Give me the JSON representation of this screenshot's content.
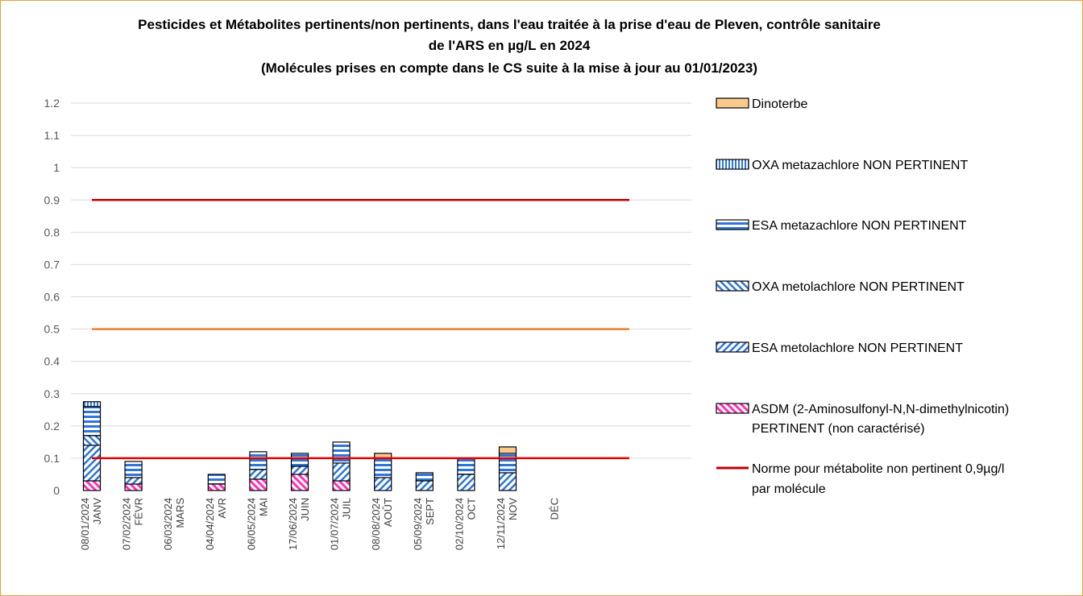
{
  "chart_data": {
    "type": "bar",
    "stacked": true,
    "title_lines": [
      "Pesticides et Métabolites pertinents/non pertinents, dans l'eau traitée à la prise d'eau de Pleven, contrôle sanitaire",
      "de l'ARS en µg/L  en 2024",
      "(Molécules prises en compte dans le CS suite à la mise à jour au 01/01/2023)"
    ],
    "ylim": [
      0,
      1.2
    ],
    "y_ticks": [
      "0",
      "0.1",
      "0.2",
      "0.3",
      "0.4",
      "0.5",
      "0.6",
      "0.7",
      "0.8",
      "0.9",
      "1",
      "1.1",
      "1.2"
    ],
    "grid": true,
    "legend_position": "right",
    "categories": [
      {
        "date": "08/01/2024",
        "month": "JANV"
      },
      {
        "date": "07/02/2024",
        "month": "FÉVR"
      },
      {
        "date": "06/03/2024",
        "month": "MARS"
      },
      {
        "date": "04/04/2024",
        "month": "AVR"
      },
      {
        "date": "06/05/2024",
        "month": "MAI"
      },
      {
        "date": "17/06/2024",
        "month": "JUIN"
      },
      {
        "date": "01/07/2024",
        "month": "JUIL"
      },
      {
        "date": "08/08/2024",
        "month": "AOÛT"
      },
      {
        "date": "05/09/2024",
        "month": "SEPT"
      },
      {
        "date": "02/10/2024",
        "month": "OCT"
      },
      {
        "date": "12/11/2024",
        "month": "NOV"
      },
      {
        "date": "",
        "month": "DÉC"
      }
    ],
    "series": [
      {
        "name": "ASDM (2-Aminosulfonyl-N,N-dimethylnicotin)",
        "name2": "PERTINENT (non caractérisé)",
        "pattern": "pinkdiag",
        "color": "#ff2fb4",
        "values": [
          0.03,
          0.02,
          0,
          0.02,
          0.035,
          0.05,
          0.03,
          0,
          0,
          0,
          0,
          0
        ]
      },
      {
        "name": "ESA metolachlore NON PERTINENT",
        "pattern": "bluediagup",
        "color": "#2e75d6",
        "values": [
          0.11,
          0.02,
          0,
          0,
          0.03,
          0.025,
          0.055,
          0.04,
          0.03,
          0.05,
          0.055,
          0
        ]
      },
      {
        "name": "OXA metolachlore NON PERTINENT",
        "pattern": "bluediagdown",
        "color": "#2e75d6",
        "values": [
          0.03,
          0,
          0,
          0,
          0,
          0,
          0,
          0,
          0,
          0,
          0,
          0
        ]
      },
      {
        "name": "ESA metazachlore NON PERTINENT",
        "pattern": "hstripe",
        "color": "#2e75d6",
        "values": [
          0.09,
          0.05,
          0,
          0.03,
          0.055,
          0.04,
          0.065,
          0.06,
          0.025,
          0.05,
          0.06,
          0
        ]
      },
      {
        "name": "OXA metazachlore NON PERTINENT",
        "pattern": "vstripe",
        "color": "#2e75d6",
        "values": [
          0.015,
          0,
          0,
          0,
          0,
          0,
          0,
          0,
          0,
          0,
          0,
          0
        ]
      },
      {
        "name": "Dinoterbe",
        "pattern": "solid",
        "color": "#fcc98c",
        "values": [
          0,
          0,
          0,
          0,
          0,
          0,
          0,
          0.015,
          0,
          0,
          0.02,
          0
        ]
      }
    ],
    "reference_lines": [
      {
        "name": "Norme pour métabolite non pertinent 0,9µg/l",
        "name2": "par molécule",
        "value": 0.9,
        "color": "#c00000",
        "in_legend": true
      },
      {
        "name": "",
        "value": 0.5,
        "color": "#ed7d31",
        "in_legend": false
      },
      {
        "name": "",
        "value": 0.1,
        "color": "#e00000",
        "in_legend": false
      }
    ],
    "legend_order": [
      "Dinoterbe",
      "OXA metazachlore NON PERTINENT",
      "ESA metazachlore NON PERTINENT",
      "OXA metolachlore NON PERTINENT",
      "ESA metolachlore NON PERTINENT",
      "ASDM (2-Aminosulfonyl-N,N-dimethylnicotin)",
      "Norme pour métabolite non pertinent 0,9µg/l"
    ]
  }
}
